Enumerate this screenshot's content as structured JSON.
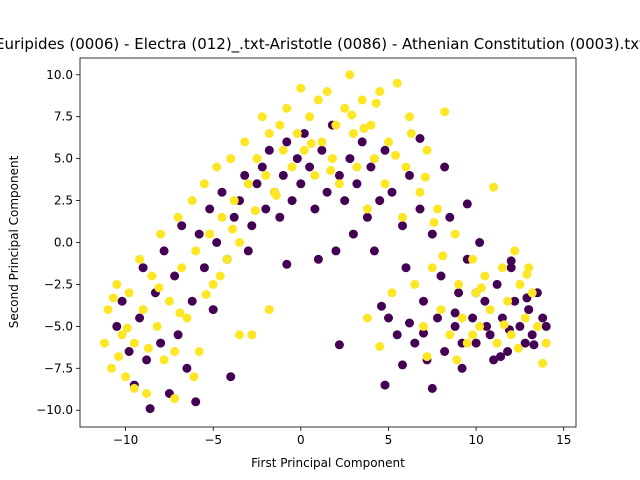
{
  "chart_data": {
    "type": "scatter",
    "title": "Euripides (0006) - Electra (012)_.txt-Aristotle (0086) - Athenian Constitution (0003).txt",
    "xlabel": "First Principal Component",
    "ylabel": "Second Principal Component",
    "xlim": [
      -12.6,
      15.7
    ],
    "ylim": [
      -11,
      11
    ],
    "xticks": [
      -10,
      -5,
      0,
      5,
      10,
      15
    ],
    "yticks": [
      -10.0,
      -7.5,
      -5.0,
      -2.5,
      0.0,
      2.5,
      5.0,
      7.5,
      10.0
    ],
    "xtick_labels": [
      "−10",
      "−5",
      "0",
      "5",
      "10",
      "15"
    ],
    "ytick_labels": [
      "−10.0",
      "−7.5",
      "−5.0",
      "−2.5",
      "0.0",
      "2.5",
      "5.0",
      "7.5",
      "10.0"
    ],
    "grid": false,
    "legend": "none",
    "colors": {
      "class_0": "#440154",
      "class_1": "#fde725"
    },
    "series": [
      {
        "color": "#440154",
        "points": [
          [
            -10.5,
            -5.0
          ],
          [
            -10.2,
            -3.5
          ],
          [
            -9.8,
            -6.5
          ],
          [
            -9.5,
            -8.5
          ],
          [
            -9.2,
            -4.5
          ],
          [
            -9.0,
            -1.5
          ],
          [
            -8.8,
            -7.0
          ],
          [
            -8.6,
            -9.9
          ],
          [
            -8.3,
            -3.0
          ],
          [
            -8.0,
            -6.0
          ],
          [
            -7.8,
            -0.5
          ],
          [
            -7.5,
            -9.0
          ],
          [
            -7.2,
            -2.0
          ],
          [
            -7.0,
            -5.5
          ],
          [
            -6.8,
            1.0
          ],
          [
            -6.5,
            -7.5
          ],
          [
            -6.2,
            -3.5
          ],
          [
            -6.0,
            -9.5
          ],
          [
            -5.8,
            0.5
          ],
          [
            -5.5,
            -1.5
          ],
          [
            -5.2,
            2.0
          ],
          [
            -5.0,
            -4.0
          ],
          [
            -4.8,
            0.0
          ],
          [
            -4.5,
            3.0
          ],
          [
            -4.2,
            -1.0
          ],
          [
            -4.0,
            -8.0
          ],
          [
            -3.8,
            1.5
          ],
          [
            -3.5,
            2.5
          ],
          [
            -3.2,
            4.0
          ],
          [
            -3.0,
            -0.5
          ],
          [
            -2.8,
            1.0
          ],
          [
            -2.5,
            3.5
          ],
          [
            -2.2,
            4.5
          ],
          [
            -2.0,
            2.0
          ],
          [
            -1.8,
            5.5
          ],
          [
            -1.5,
            3.0
          ],
          [
            -1.2,
            1.5
          ],
          [
            -1.0,
            4.0
          ],
          [
            -0.8,
            6.0
          ],
          [
            -0.5,
            2.5
          ],
          [
            -0.2,
            5.0
          ],
          [
            0.0,
            3.5
          ],
          [
            0.2,
            6.5
          ],
          [
            0.5,
            4.5
          ],
          [
            0.8,
            2.0
          ],
          [
            1.0,
            -1.0
          ],
          [
            1.2,
            5.5
          ],
          [
            1.5,
            3.0
          ],
          [
            1.8,
            7.0
          ],
          [
            2.0,
            -0.5
          ],
          [
            2.2,
            4.0
          ],
          [
            2.5,
            2.5
          ],
          [
            2.8,
            5.0
          ],
          [
            3.0,
            0.5
          ],
          [
            3.2,
            3.5
          ],
          [
            3.5,
            6.0
          ],
          [
            3.8,
            1.5
          ],
          [
            4.0,
            4.5
          ],
          [
            4.2,
            -0.5
          ],
          [
            4.5,
            2.5
          ],
          [
            4.8,
            5.5
          ],
          [
            5.0,
            -4.5
          ],
          [
            5.2,
            3.0
          ],
          [
            5.5,
            -5.5
          ],
          [
            5.8,
            1.0
          ],
          [
            6.0,
            -1.5
          ],
          [
            6.2,
            4.0
          ],
          [
            6.5,
            -6.0
          ],
          [
            6.8,
            2.0
          ],
          [
            7.0,
            -3.5
          ],
          [
            7.2,
            -7.0
          ],
          [
            7.5,
            0.5
          ],
          [
            7.8,
            -4.5
          ],
          [
            8.0,
            -2.0
          ],
          [
            8.2,
            -6.5
          ],
          [
            8.5,
            1.5
          ],
          [
            8.8,
            -5.0
          ],
          [
            9.0,
            -3.0
          ],
          [
            9.2,
            -7.5
          ],
          [
            9.5,
            -1.0
          ],
          [
            9.8,
            -4.5
          ],
          [
            10.0,
            -6.0
          ],
          [
            10.2,
            0.0
          ],
          [
            10.5,
            -3.5
          ],
          [
            10.8,
            -5.5
          ],
          [
            11.0,
            -7.0
          ],
          [
            11.2,
            -2.5
          ],
          [
            11.5,
            -4.5
          ],
          [
            11.8,
            -6.5
          ],
          [
            12.0,
            -1.5
          ],
          [
            12.2,
            -3.5
          ],
          [
            12.5,
            -5.0
          ],
          [
            12.8,
            -6.0
          ],
          [
            13.0,
            -4.0
          ],
          [
            13.2,
            -5.5
          ],
          [
            13.5,
            -3.0
          ],
          [
            13.8,
            -4.5
          ],
          [
            14.0,
            -5.0
          ],
          [
            7.5,
            -8.7
          ],
          [
            4.8,
            -8.5
          ],
          [
            2.2,
            -6.1
          ],
          [
            -0.8,
            -1.3
          ],
          [
            8.2,
            4.5
          ],
          [
            9.5,
            2.3
          ],
          [
            6.8,
            6.2
          ],
          [
            12.0,
            -1.1
          ],
          [
            10.6,
            -5.0
          ],
          [
            11.4,
            -6.8
          ],
          [
            9.2,
            -6.0
          ],
          [
            8.8,
            -4.2
          ],
          [
            10.0,
            -3.0
          ],
          [
            7.0,
            -5.4
          ],
          [
            6.2,
            -4.8
          ],
          [
            5.8,
            -7.3
          ],
          [
            4.6,
            -3.8
          ],
          [
            12.9,
            -3.3
          ],
          [
            13.3,
            -6.1
          ],
          [
            11.9,
            -5.2
          ]
        ]
      },
      {
        "color": "#fde725",
        "points": [
          [
            -11.2,
            -6.0
          ],
          [
            -11.0,
            -4.0
          ],
          [
            -10.8,
            -7.5
          ],
          [
            -10.5,
            -2.5
          ],
          [
            -10.2,
            -5.5
          ],
          [
            -10.0,
            -8.0
          ],
          [
            -9.8,
            -3.0
          ],
          [
            -9.5,
            -6.0
          ],
          [
            -9.2,
            -1.0
          ],
          [
            -9.0,
            -4.0
          ],
          [
            -8.8,
            -9.0
          ],
          [
            -8.5,
            -2.0
          ],
          [
            -8.2,
            -5.0
          ],
          [
            -8.0,
            0.5
          ],
          [
            -7.8,
            -7.0
          ],
          [
            -7.5,
            -3.5
          ],
          [
            -7.2,
            -6.5
          ],
          [
            -7.0,
            1.5
          ],
          [
            -6.8,
            -1.5
          ],
          [
            -6.5,
            -4.5
          ],
          [
            -6.2,
            2.5
          ],
          [
            -6.0,
            -0.5
          ],
          [
            -5.8,
            -6.5
          ],
          [
            -5.5,
            3.5
          ],
          [
            -5.2,
            0.5
          ],
          [
            -5.0,
            -2.5
          ],
          [
            -4.8,
            4.5
          ],
          [
            -4.5,
            1.5
          ],
          [
            -4.2,
            -1.0
          ],
          [
            -4.0,
            5.0
          ],
          [
            -3.8,
            2.5
          ],
          [
            -3.5,
            0.0
          ],
          [
            -3.2,
            6.0
          ],
          [
            -3.0,
            3.5
          ],
          [
            -2.8,
            -5.5
          ],
          [
            -2.5,
            5.0
          ],
          [
            -2.2,
            7.5
          ],
          [
            -2.0,
            4.0
          ],
          [
            -1.8,
            6.5
          ],
          [
            -1.5,
            3.0
          ],
          [
            -1.2,
            7.0
          ],
          [
            -1.0,
            5.5
          ],
          [
            -0.8,
            8.0
          ],
          [
            -0.5,
            4.5
          ],
          [
            -0.2,
            6.5
          ],
          [
            0.0,
            9.2
          ],
          [
            0.2,
            5.5
          ],
          [
            0.5,
            7.5
          ],
          [
            0.8,
            4.0
          ],
          [
            1.0,
            8.5
          ],
          [
            1.2,
            6.0
          ],
          [
            1.5,
            9.0
          ],
          [
            1.8,
            5.0
          ],
          [
            2.0,
            7.0
          ],
          [
            2.2,
            3.5
          ],
          [
            2.5,
            8.0
          ],
          [
            2.8,
            10.0
          ],
          [
            3.0,
            6.5
          ],
          [
            3.2,
            4.5
          ],
          [
            3.5,
            8.5
          ],
          [
            3.8,
            2.0
          ],
          [
            4.0,
            7.0
          ],
          [
            4.2,
            5.0
          ],
          [
            4.5,
            9.0
          ],
          [
            4.8,
            3.5
          ],
          [
            5.0,
            6.0
          ],
          [
            5.2,
            -3.0
          ],
          [
            5.5,
            9.5
          ],
          [
            5.8,
            1.5
          ],
          [
            6.0,
            4.5
          ],
          [
            6.2,
            7.5
          ],
          [
            6.5,
            -2.5
          ],
          [
            6.8,
            3.0
          ],
          [
            7.0,
            -5.0
          ],
          [
            7.2,
            5.5
          ],
          [
            7.5,
            -1.5
          ],
          [
            7.8,
            2.0
          ],
          [
            8.0,
            -4.0
          ],
          [
            8.2,
            7.8
          ],
          [
            8.5,
            -5.5
          ],
          [
            8.8,
            0.5
          ],
          [
            9.0,
            -2.5
          ],
          [
            9.2,
            -4.5
          ],
          [
            9.5,
            -6.0
          ],
          [
            9.8,
            -1.0
          ],
          [
            10.0,
            -3.0
          ],
          [
            10.2,
            -5.0
          ],
          [
            10.5,
            -2.0
          ],
          [
            10.8,
            -4.0
          ],
          [
            11.0,
            3.3
          ],
          [
            11.2,
            -6.0
          ],
          [
            11.5,
            -1.5
          ],
          [
            11.8,
            -3.5
          ],
          [
            12.0,
            -5.5
          ],
          [
            12.2,
            -0.5
          ],
          [
            12.5,
            -2.5
          ],
          [
            12.8,
            -4.5
          ],
          [
            13.0,
            -1.5
          ],
          [
            13.2,
            -3.0
          ],
          [
            13.5,
            -5.0
          ],
          [
            13.8,
            -7.2
          ],
          [
            14.0,
            -6.0
          ],
          [
            -1.8,
            -4.0
          ],
          [
            -3.5,
            -5.5
          ],
          [
            3.8,
            -4.5
          ],
          [
            4.5,
            -6.2
          ],
          [
            7.2,
            -6.8
          ],
          [
            9.8,
            -5.5
          ],
          [
            8.9,
            -7.0
          ],
          [
            -9.5,
            -8.7
          ],
          [
            -10.4,
            -6.8
          ],
          [
            -7.2,
            -9.3
          ],
          [
            -6.1,
            -8.0
          ],
          [
            -8.7,
            -6.3
          ],
          [
            -9.9,
            -5.1
          ],
          [
            -10.7,
            -3.3
          ],
          [
            -8.1,
            -2.7
          ],
          [
            -6.9,
            -4.2
          ],
          [
            -5.4,
            -3.1
          ],
          [
            -4.6,
            -2.0
          ],
          [
            -3.9,
            0.8
          ],
          [
            -2.6,
            1.9
          ],
          [
            -1.4,
            2.8
          ],
          [
            0.6,
            5.9
          ],
          [
            1.7,
            4.3
          ],
          [
            2.9,
            7.6
          ],
          [
            3.6,
            6.8
          ],
          [
            4.3,
            8.3
          ],
          [
            5.4,
            5.2
          ],
          [
            6.3,
            6.5
          ],
          [
            7.1,
            3.9
          ],
          [
            7.6,
            1.2
          ],
          [
            8.1,
            -0.8
          ],
          [
            10.3,
            -2.7
          ],
          [
            11.6,
            -4.9
          ],
          [
            12.4,
            -6.3
          ],
          [
            12.9,
            -1.9
          ]
        ]
      }
    ]
  }
}
